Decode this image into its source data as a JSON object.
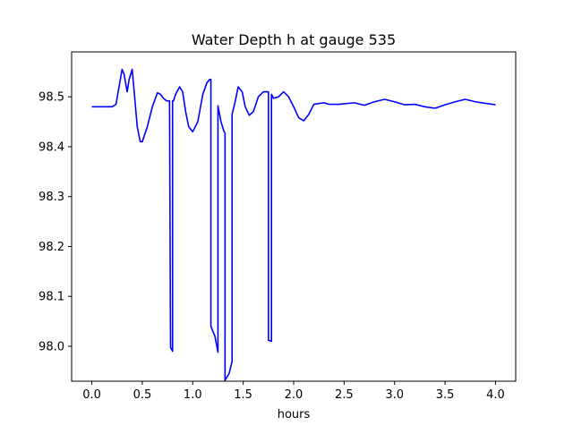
{
  "chart_data": {
    "type": "line",
    "title": "Water Depth h at gauge 535",
    "xlabel": "hours",
    "ylabel": "",
    "xlim": [
      -0.2,
      4.2
    ],
    "ylim": [
      97.93,
      98.59
    ],
    "xticks": [
      0.0,
      0.5,
      1.0,
      1.5,
      2.0,
      2.5,
      3.0,
      3.5,
      4.0
    ],
    "xtick_labels": [
      "0.0",
      "0.5",
      "1.0",
      "1.5",
      "2.0",
      "2.5",
      "3.0",
      "3.5",
      "4.0"
    ],
    "yticks": [
      98.0,
      98.1,
      98.2,
      98.3,
      98.4,
      98.5
    ],
    "ytick_labels": [
      "98.0",
      "98.1",
      "98.2",
      "98.3",
      "98.4",
      "98.5"
    ],
    "grid": false,
    "line_color": "#0000ff",
    "series": [
      {
        "x": [
          0.0,
          0.2,
          0.24,
          0.27,
          0.3,
          0.32,
          0.35,
          0.37,
          0.4,
          0.42,
          0.45,
          0.48,
          0.5,
          0.55,
          0.6,
          0.65,
          0.68,
          0.71,
          0.74,
          0.77,
          0.78,
          0.78,
          0.8,
          0.8,
          0.81,
          0.83,
          0.87,
          0.9,
          0.93,
          0.96,
          1.0,
          1.05,
          1.1,
          1.14,
          1.17,
          1.18,
          1.18,
          1.22,
          1.25,
          1.25,
          1.28,
          1.31,
          1.32,
          1.32,
          1.36,
          1.39,
          1.39,
          1.42,
          1.45,
          1.49,
          1.52,
          1.56,
          1.6,
          1.65,
          1.7,
          1.74,
          1.75,
          1.75,
          1.78,
          1.78,
          1.8,
          1.85,
          1.9,
          1.95,
          2.0,
          2.05,
          2.1,
          2.15,
          2.2,
          2.3,
          2.35,
          2.45,
          2.6,
          2.7,
          2.8,
          2.9,
          3.0,
          3.1,
          3.2,
          3.3,
          3.4,
          3.5,
          3.6,
          3.7,
          3.8,
          3.9,
          4.0
        ],
        "y": [
          98.48,
          98.48,
          98.485,
          98.52,
          98.555,
          98.545,
          98.51,
          98.535,
          98.555,
          98.51,
          98.44,
          98.41,
          98.41,
          98.44,
          98.48,
          98.508,
          98.505,
          98.497,
          98.492,
          98.492,
          97.998,
          97.998,
          97.99,
          98.492,
          98.492,
          98.505,
          98.52,
          98.51,
          98.47,
          98.44,
          98.43,
          98.45,
          98.505,
          98.528,
          98.535,
          98.535,
          98.04,
          98.02,
          97.988,
          98.482,
          98.45,
          98.43,
          98.428,
          97.932,
          97.945,
          97.97,
          98.465,
          98.49,
          98.52,
          98.51,
          98.48,
          98.463,
          98.47,
          98.5,
          98.51,
          98.51,
          98.51,
          98.012,
          98.01,
          98.505,
          98.497,
          98.5,
          98.51,
          98.5,
          98.48,
          98.458,
          98.452,
          98.465,
          98.485,
          98.488,
          98.485,
          98.485,
          98.488,
          98.483,
          98.49,
          98.495,
          98.49,
          98.484,
          98.485,
          98.48,
          98.477,
          98.484,
          98.49,
          98.495,
          98.49,
          98.487,
          98.484
        ]
      }
    ]
  }
}
